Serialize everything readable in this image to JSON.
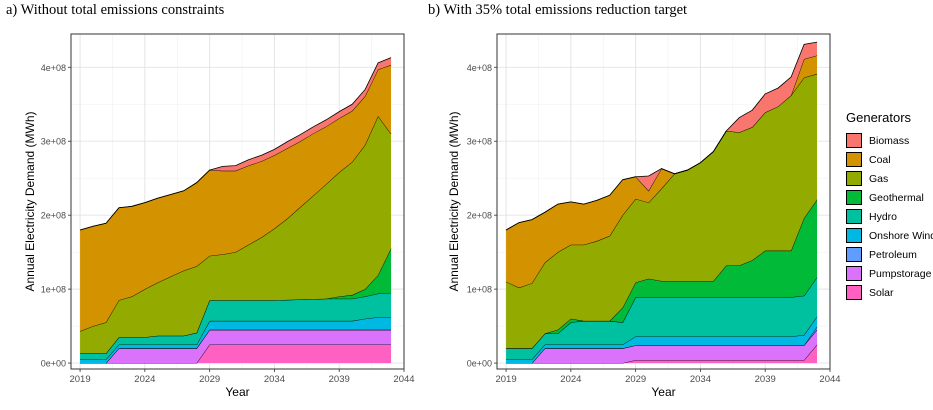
{
  "chart_data": [
    {
      "type": "area",
      "title": "a) Without total emissions constraints",
      "xlabel": "Year",
      "ylabel": "Annual Electricity Demand (MWh)",
      "xlim": [
        2018.3,
        2044.0
      ],
      "ylim": [
        -8000000,
        445000000
      ],
      "xticks": [
        2019,
        2024,
        2029,
        2034,
        2039,
        2044
      ],
      "yticks": [
        0,
        100000000,
        200000000,
        300000000,
        400000000
      ],
      "ytick_labels": [
        "0e+00",
        "1e+08",
        "2e+08",
        "3e+08",
        "4e+08"
      ],
      "grid": true,
      "x": [
        2019,
        2020,
        2021,
        2022,
        2023,
        2024,
        2025,
        2026,
        2027,
        2028,
        2029,
        2030,
        2031,
        2032,
        2033,
        2034,
        2035,
        2036,
        2037,
        2038,
        2039,
        2040,
        2041,
        2042,
        2043
      ],
      "series": [
        {
          "name": "Solar",
          "values": [
            0,
            0,
            0,
            0,
            0,
            0,
            0,
            0,
            0,
            0,
            25000000,
            25000000,
            25000000,
            25000000,
            25000000,
            25000000,
            25000000,
            25000000,
            25000000,
            25000000,
            25000000,
            25000000,
            25000000,
            25000000,
            25000000
          ]
        },
        {
          "name": "Pumpstorage",
          "values": [
            0,
            0,
            0,
            20000000,
            20000000,
            20000000,
            20000000,
            20000000,
            20000000,
            20000000,
            20000000,
            20000000,
            20000000,
            20000000,
            20000000,
            20000000,
            20000000,
            20000000,
            20000000,
            20000000,
            20000000,
            20000000,
            20000000,
            20000000,
            20000000
          ]
        },
        {
          "name": "Petroleum",
          "values": [
            0,
            0,
            0,
            0,
            0,
            0,
            0,
            0,
            0,
            0,
            0,
            0,
            0,
            0,
            0,
            0,
            0,
            0,
            0,
            0,
            0,
            0,
            0,
            0,
            0
          ]
        },
        {
          "name": "Onshore Wind",
          "values": [
            5000000,
            5000000,
            5000000,
            5000000,
            5000000,
            5000000,
            5000000,
            5000000,
            5000000,
            5000000,
            12000000,
            12000000,
            12000000,
            12000000,
            12000000,
            12000000,
            12000000,
            12000000,
            12000000,
            12000000,
            12000000,
            12000000,
            15000000,
            17000000,
            17000000
          ]
        },
        {
          "name": "Hydro",
          "values": [
            8000000,
            8000000,
            8000000,
            10000000,
            10000000,
            10000000,
            12000000,
            12000000,
            12000000,
            16000000,
            28000000,
            28000000,
            28000000,
            28000000,
            28000000,
            28000000,
            28500000,
            29000000,
            29500000,
            30000000,
            30000000,
            30000000,
            30000000,
            32000000,
            33000000
          ]
        },
        {
          "name": "Geothermal",
          "values": [
            0,
            0,
            0,
            0,
            0,
            0,
            0,
            0,
            0,
            0,
            0,
            0,
            0,
            0,
            0,
            0,
            0,
            0,
            0,
            0,
            3000000,
            5000000,
            10000000,
            25000000,
            60000000
          ]
        },
        {
          "name": "Gas",
          "values": [
            30000000,
            37000000,
            42000000,
            50000000,
            55000000,
            65000000,
            72000000,
            80000000,
            88000000,
            90000000,
            60000000,
            62000000,
            65000000,
            75000000,
            85000000,
            97000000,
            110000000,
            125000000,
            140000000,
            155000000,
            168000000,
            180000000,
            195000000,
            215000000,
            155000000
          ]
        },
        {
          "name": "Coal",
          "values": [
            137000000,
            135000000,
            134000000,
            125000000,
            122000000,
            117000000,
            114000000,
            111000000,
            108000000,
            113000000,
            116000000,
            113000000,
            110000000,
            107000000,
            103000000,
            99000000,
            95000000,
            89000000,
            84000000,
            78000000,
            73000000,
            69000000,
            66000000,
            63000000,
            93000000
          ]
        },
        {
          "name": "Biomass",
          "values": [
            0,
            0,
            0,
            0,
            0,
            0,
            0,
            0,
            0,
            0,
            0,
            6000000,
            7000000,
            8000000,
            8000000,
            8000000,
            9000000,
            9000000,
            9000000,
            9000000,
            9000000,
            9000000,
            9000000,
            9000000,
            10000000
          ]
        }
      ]
    },
    {
      "type": "area",
      "title": "b) With 35% total emissions reduction target",
      "xlabel": "Year",
      "ylabel": "Annual Electricity Demand (MWh)",
      "xlim": [
        2018.3,
        2044.0
      ],
      "ylim": [
        -8000000,
        445000000
      ],
      "xticks": [
        2019,
        2024,
        2029,
        2034,
        2039,
        2044
      ],
      "yticks": [
        0,
        100000000,
        200000000,
        300000000,
        400000000
      ],
      "ytick_labels": [
        "0e+00",
        "1e+08",
        "2e+08",
        "3e+08",
        "4e+08"
      ],
      "grid": true,
      "x": [
        2019,
        2020,
        2021,
        2022,
        2023,
        2024,
        2025,
        2026,
        2027,
        2028,
        2029,
        2030,
        2031,
        2032,
        2033,
        2034,
        2035,
        2036,
        2037,
        2038,
        2039,
        2040,
        2041,
        2042,
        2043
      ],
      "series": [
        {
          "name": "Solar",
          "values": [
            0,
            0,
            0,
            0,
            0,
            0,
            0,
            0,
            0,
            0,
            4000000,
            4000000,
            4000000,
            4000000,
            4000000,
            4000000,
            4000000,
            4000000,
            4000000,
            4000000,
            4000000,
            4000000,
            4000000,
            4000000,
            25000000
          ]
        },
        {
          "name": "Pumpstorage",
          "values": [
            0,
            0,
            0,
            20000000,
            20000000,
            20000000,
            20000000,
            20000000,
            20000000,
            20000000,
            20000000,
            20000000,
            20000000,
            20000000,
            20000000,
            20000000,
            20000000,
            20000000,
            20000000,
            20000000,
            20000000,
            20000000,
            20000000,
            20000000,
            20000000
          ]
        },
        {
          "name": "Petroleum",
          "values": [
            0,
            0,
            0,
            0,
            0,
            0,
            0,
            0,
            0,
            0,
            0,
            0,
            0,
            0,
            0,
            0,
            0,
            0,
            0,
            0,
            0,
            0,
            0,
            0,
            4000000
          ]
        },
        {
          "name": "Onshore Wind",
          "values": [
            5000000,
            5000000,
            5000000,
            5000000,
            5000000,
            5000000,
            5000000,
            5000000,
            5000000,
            5000000,
            12000000,
            12000000,
            12000000,
            12000000,
            12000000,
            12000000,
            12000000,
            12000000,
            12000000,
            12000000,
            12000000,
            12000000,
            12000000,
            14000000,
            14000000
          ]
        },
        {
          "name": "Hydro",
          "values": [
            15000000,
            15000000,
            15000000,
            15000000,
            15000000,
            30000000,
            32000000,
            32000000,
            32000000,
            30000000,
            53000000,
            53000000,
            53000000,
            53000000,
            53000000,
            53000000,
            53000000,
            53000000,
            53000000,
            53000000,
            53000000,
            53000000,
            53000000,
            53000000,
            53000000
          ]
        },
        {
          "name": "Geothermal",
          "values": [
            0,
            0,
            0,
            0,
            5000000,
            5000000,
            0,
            0,
            0,
            20000000,
            20000000,
            25000000,
            22000000,
            22000000,
            22000000,
            22000000,
            22000000,
            43000000,
            43000000,
            50000000,
            63000000,
            63000000,
            63000000,
            105000000,
            105000000
          ]
        },
        {
          "name": "Gas",
          "values": [
            90000000,
            82000000,
            88000000,
            96000000,
            105000000,
            100000000,
            103000000,
            108000000,
            115000000,
            125000000,
            113000000,
            103000000,
            125000000,
            145000000,
            150000000,
            160000000,
            175000000,
            182000000,
            180000000,
            180000000,
            187000000,
            195000000,
            210000000,
            190000000,
            170000000
          ]
        },
        {
          "name": "Coal",
          "values": [
            70000000,
            88000000,
            86000000,
            68000000,
            65000000,
            58000000,
            55000000,
            55000000,
            55000000,
            48000000,
            30000000,
            16000000,
            27000000,
            0,
            0,
            0,
            0,
            0,
            0,
            0,
            0,
            0,
            0,
            25000000,
            25000000
          ]
        },
        {
          "name": "Biomass",
          "values": [
            0,
            0,
            0,
            0,
            0,
            0,
            0,
            0,
            0,
            0,
            0,
            20000000,
            0,
            0,
            0,
            0,
            0,
            0,
            20000000,
            23000000,
            25000000,
            25000000,
            25000000,
            20000000,
            18000000
          ]
        }
      ]
    }
  ],
  "legend": {
    "title": "Generators",
    "items": [
      {
        "label": "Biomass",
        "color": "#F8766D"
      },
      {
        "label": "Coal",
        "color": "#D39200"
      },
      {
        "label": "Gas",
        "color": "#93AA00"
      },
      {
        "label": "Geothermal",
        "color": "#00BA38"
      },
      {
        "label": "Hydro",
        "color": "#00C19F"
      },
      {
        "label": "Onshore Wind",
        "color": "#00B9E3"
      },
      {
        "label": "Petroleum",
        "color": "#619CFF"
      },
      {
        "label": "Pumpstorage",
        "color": "#DB72FB"
      },
      {
        "label": "Solar",
        "color": "#FF61C3"
      }
    ]
  }
}
